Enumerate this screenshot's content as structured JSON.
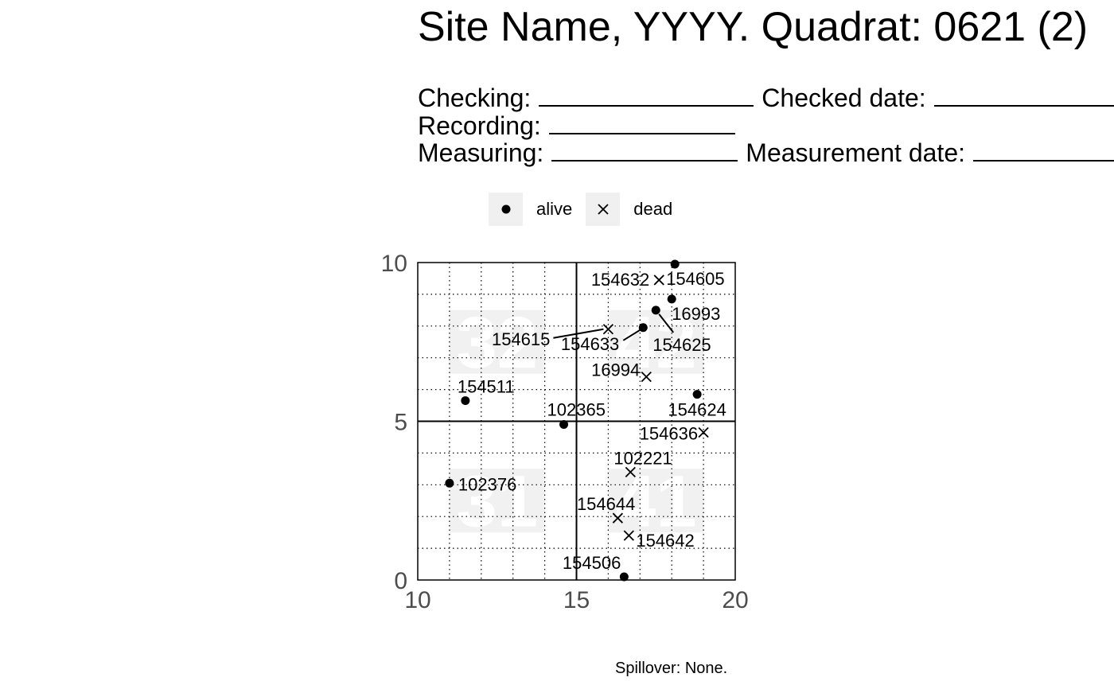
{
  "title": "Site Name, YYYY. Quadrat: 0621 (2)",
  "form": {
    "checking_label": "Checking:",
    "checked_date_label": "Checked date:",
    "recording_label": "Recording:",
    "measuring_label": "Measuring:",
    "measurement_date_label": "Measurement date:"
  },
  "legend": {
    "alive_label": "alive",
    "dead_label": "dead",
    "alive_icon": "filled-circle-icon",
    "dead_icon": "cross-icon"
  },
  "footer": "Spillover: None.",
  "chart_data": {
    "type": "scatter",
    "xlim": [
      10,
      20
    ],
    "ylim": [
      0,
      10
    ],
    "x_ticks": [
      "10",
      "15",
      "20"
    ],
    "y_ticks": [
      "0",
      "5",
      "10"
    ],
    "grid": true,
    "legend_position": "top",
    "subquadrats": [
      {
        "label": "32",
        "x": 12.5,
        "y": 7.5
      },
      {
        "label": "42",
        "x": 17.5,
        "y": 7.5
      },
      {
        "label": "31",
        "x": 12.5,
        "y": 2.5
      },
      {
        "label": "41",
        "x": 17.5,
        "y": 2.5
      }
    ],
    "points": [
      {
        "tag": "154605",
        "x": 18.1,
        "y": 9.95,
        "status": "alive"
      },
      {
        "tag": "154632",
        "x": 17.6,
        "y": 9.45,
        "status": "dead"
      },
      {
        "tag": "16993",
        "x": 18.0,
        "y": 8.85,
        "status": "alive"
      },
      {
        "tag": "154625",
        "x": 17.5,
        "y": 8.5,
        "status": "alive"
      },
      {
        "tag": "154633",
        "x": 17.1,
        "y": 7.95,
        "status": "alive"
      },
      {
        "tag": "154615",
        "x": 16.0,
        "y": 7.9,
        "status": "dead"
      },
      {
        "tag": "16994",
        "x": 17.2,
        "y": 6.4,
        "status": "dead"
      },
      {
        "tag": "154624",
        "x": 18.8,
        "y": 5.85,
        "status": "alive"
      },
      {
        "tag": "154511",
        "x": 11.5,
        "y": 5.65,
        "status": "alive"
      },
      {
        "tag": "102365",
        "x": 14.6,
        "y": 4.9,
        "status": "alive"
      },
      {
        "tag": "154636",
        "x": 19.0,
        "y": 4.65,
        "status": "dead"
      },
      {
        "tag": "102221",
        "x": 16.7,
        "y": 3.4,
        "status": "dead"
      },
      {
        "tag": "102376",
        "x": 11.0,
        "y": 3.05,
        "status": "alive"
      },
      {
        "tag": "154644",
        "x": 16.3,
        "y": 1.95,
        "status": "dead"
      },
      {
        "tag": "154642",
        "x": 16.65,
        "y": 1.4,
        "status": "dead"
      },
      {
        "tag": "154506",
        "x": 16.5,
        "y": 0.1,
        "status": "alive"
      }
    ]
  }
}
